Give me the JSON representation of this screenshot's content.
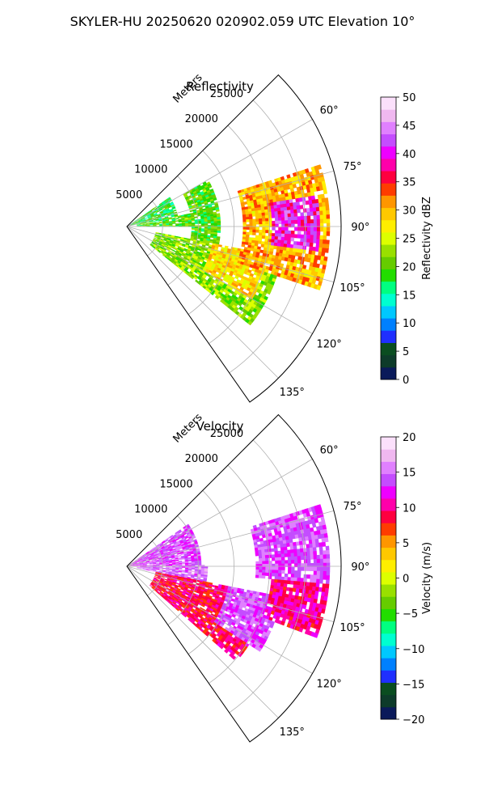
{
  "figure": {
    "title": "SKYLER-HU  20250620  020902.059 UTC Elevation 10°"
  },
  "chart_data": [
    {
      "type": "heatmap",
      "subtype": "polar-sector",
      "title": "Reflectivity",
      "range_label": "Meters",
      "range_max_m": 30000,
      "range_ticks": [
        "5000",
        "10000",
        "15000",
        "20000",
        "25000"
      ],
      "range_tick_values": [
        5000,
        10000,
        15000,
        20000,
        25000
      ],
      "azimuth_min_deg": 45,
      "azimuth_max_deg": 145,
      "azimuth_ticks": [
        "60°",
        "75°",
        "90°",
        "105°",
        "120°",
        "135°"
      ],
      "azimuth_tick_values": [
        60,
        75,
        90,
        105,
        120,
        135
      ],
      "grid": true,
      "colorbar": {
        "label": "Reflectivity dBZ",
        "min": 0,
        "max": 50,
        "ticks": [
          "0",
          "5",
          "10",
          "15",
          "20",
          "25",
          "30",
          "35",
          "40",
          "45",
          "50"
        ],
        "tick_values": [
          0,
          5,
          10,
          15,
          20,
          25,
          30,
          35,
          40,
          45,
          50
        ],
        "colors": [
          "#0a1a5a",
          "#0d3b2a",
          "#0a4d20",
          "#1f2fff",
          "#0080ff",
          "#00c8ff",
          "#00ffd0",
          "#00ff80",
          "#22dd00",
          "#66cc00",
          "#99e000",
          "#ddff00",
          "#ffee00",
          "#ffc800",
          "#ff9600",
          "#ff3c00",
          "#ff0040",
          "#ff00aa",
          "#ee00ff",
          "#c44dff",
          "#e080ff",
          "#f0b8f0",
          "#fbe0fb"
        ]
      },
      "regions": [
        {
          "az": [
            55,
            78
          ],
          "range_km": [
            0.5,
            7
          ],
          "dbz": 18
        },
        {
          "az": [
            78,
            90
          ],
          "range_km": [
            1,
            10
          ],
          "dbz": 20
        },
        {
          "az": [
            60,
            100
          ],
          "range_km": [
            9,
            13
          ],
          "dbz": 20
        },
        {
          "az": [
            100,
            128
          ],
          "range_km": [
            4,
            22
          ],
          "dbz": 22
        },
        {
          "az": [
            100,
            120
          ],
          "range_km": [
            12,
            20
          ],
          "dbz": 28
        },
        {
          "az": [
            72,
            108
          ],
          "range_km": [
            16,
            28
          ],
          "dbz": 30
        },
        {
          "az": [
            80,
            97
          ],
          "range_km": [
            20,
            27
          ],
          "dbz": 40
        }
      ]
    },
    {
      "type": "heatmap",
      "subtype": "polar-sector",
      "title": "Velocity",
      "range_label": "Meters",
      "range_max_m": 30000,
      "range_ticks": [
        "5000",
        "10000",
        "15000",
        "20000",
        "25000"
      ],
      "range_tick_values": [
        5000,
        10000,
        15000,
        20000,
        25000
      ],
      "azimuth_min_deg": 45,
      "azimuth_max_deg": 145,
      "azimuth_ticks": [
        "60°",
        "75°",
        "90°",
        "105°",
        "120°",
        "135°"
      ],
      "azimuth_tick_values": [
        60,
        75,
        90,
        105,
        120,
        135
      ],
      "grid": true,
      "colorbar": {
        "label": "Velocity (m/s)",
        "min": -20,
        "max": 20,
        "ticks": [
          "−20",
          "−15",
          "−10",
          "−5",
          "0",
          "5",
          "10",
          "15",
          "20"
        ],
        "tick_values": [
          -20,
          -15,
          -10,
          -5,
          0,
          5,
          10,
          15,
          20
        ],
        "colors": [
          "#0a1a5a",
          "#0d3b2a",
          "#0a4d20",
          "#1f2fff",
          "#0080ff",
          "#00c8ff",
          "#00ffd0",
          "#00ff80",
          "#22dd00",
          "#66cc00",
          "#99e000",
          "#ddff00",
          "#ffee00",
          "#ffc800",
          "#ff9600",
          "#ff3c00",
          "#ff0040",
          "#ff00aa",
          "#ee00ff",
          "#c44dff",
          "#e080ff",
          "#f0b8f0",
          "#fbe0fb"
        ]
      },
      "regions": [
        {
          "az": [
            55,
            88
          ],
          "range_km": [
            0.5,
            10
          ],
          "vel": 14
        },
        {
          "az": [
            88,
            100
          ],
          "range_km": [
            1,
            11
          ],
          "vel": 15
        },
        {
          "az": [
            100,
            130
          ],
          "range_km": [
            4,
            20
          ],
          "vel": 9
        },
        {
          "az": [
            100,
            122
          ],
          "range_km": [
            14,
            22
          ],
          "vel": 14
        },
        {
          "az": [
            72,
            95
          ],
          "range_km": [
            18,
            28
          ],
          "vel": 14
        },
        {
          "az": [
            95,
            110
          ],
          "range_km": [
            20,
            28
          ],
          "vel": 10
        }
      ]
    }
  ]
}
